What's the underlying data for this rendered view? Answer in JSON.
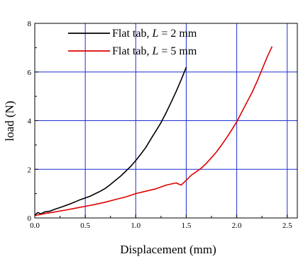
{
  "chart_data": {
    "type": "line",
    "xlabel": "Displacement (mm)",
    "ylabel": "load (N)",
    "xlim": [
      0,
      2.6
    ],
    "ylim": [
      0,
      8
    ],
    "xticks": [
      "0.0",
      "0.5",
      "1.0",
      "1.5",
      "2.0",
      "2.5"
    ],
    "yticks": [
      "0",
      "2",
      "4",
      "6",
      "8"
    ],
    "grid": true,
    "legend_position": "top-left",
    "series": [
      {
        "name_prefix": "Flat tab, ",
        "name_var": "L",
        "name_suffix": " = 2 mm",
        "color": "#000000",
        "points": [
          [
            0.0,
            0.12
          ],
          [
            0.03,
            0.22
          ],
          [
            0.06,
            0.17
          ],
          [
            0.1,
            0.25
          ],
          [
            0.15,
            0.28
          ],
          [
            0.2,
            0.36
          ],
          [
            0.25,
            0.43
          ],
          [
            0.3,
            0.5
          ],
          [
            0.35,
            0.58
          ],
          [
            0.4,
            0.66
          ],
          [
            0.45,
            0.75
          ],
          [
            0.5,
            0.82
          ],
          [
            0.55,
            0.9
          ],
          [
            0.6,
            1.0
          ],
          [
            0.65,
            1.1
          ],
          [
            0.7,
            1.22
          ],
          [
            0.75,
            1.38
          ],
          [
            0.8,
            1.55
          ],
          [
            0.85,
            1.72
          ],
          [
            0.9,
            1.92
          ],
          [
            0.95,
            2.12
          ],
          [
            1.0,
            2.36
          ],
          [
            1.05,
            2.62
          ],
          [
            1.1,
            2.9
          ],
          [
            1.15,
            3.25
          ],
          [
            1.2,
            3.58
          ],
          [
            1.25,
            3.92
          ],
          [
            1.3,
            4.32
          ],
          [
            1.35,
            4.75
          ],
          [
            1.4,
            5.2
          ],
          [
            1.45,
            5.68
          ],
          [
            1.5,
            6.2
          ]
        ]
      },
      {
        "name_prefix": "Flat tab, ",
        "name_var": "L",
        "name_suffix": " = 5 mm",
        "color": "#e00000",
        "points": [
          [
            0.0,
            0.1
          ],
          [
            0.1,
            0.18
          ],
          [
            0.2,
            0.25
          ],
          [
            0.3,
            0.32
          ],
          [
            0.4,
            0.4
          ],
          [
            0.5,
            0.48
          ],
          [
            0.6,
            0.56
          ],
          [
            0.7,
            0.65
          ],
          [
            0.8,
            0.76
          ],
          [
            0.9,
            0.86
          ],
          [
            1.0,
            1.0
          ],
          [
            1.1,
            1.1
          ],
          [
            1.2,
            1.2
          ],
          [
            1.3,
            1.35
          ],
          [
            1.4,
            1.44
          ],
          [
            1.45,
            1.35
          ],
          [
            1.5,
            1.55
          ],
          [
            1.55,
            1.76
          ],
          [
            1.6,
            1.9
          ],
          [
            1.65,
            2.05
          ],
          [
            1.7,
            2.25
          ],
          [
            1.75,
            2.48
          ],
          [
            1.8,
            2.72
          ],
          [
            1.85,
            3.0
          ],
          [
            1.9,
            3.3
          ],
          [
            1.95,
            3.62
          ],
          [
            2.0,
            3.95
          ],
          [
            2.05,
            4.35
          ],
          [
            2.1,
            4.75
          ],
          [
            2.15,
            5.15
          ],
          [
            2.2,
            5.6
          ],
          [
            2.25,
            6.1
          ],
          [
            2.3,
            6.6
          ],
          [
            2.35,
            7.05
          ]
        ]
      }
    ]
  }
}
